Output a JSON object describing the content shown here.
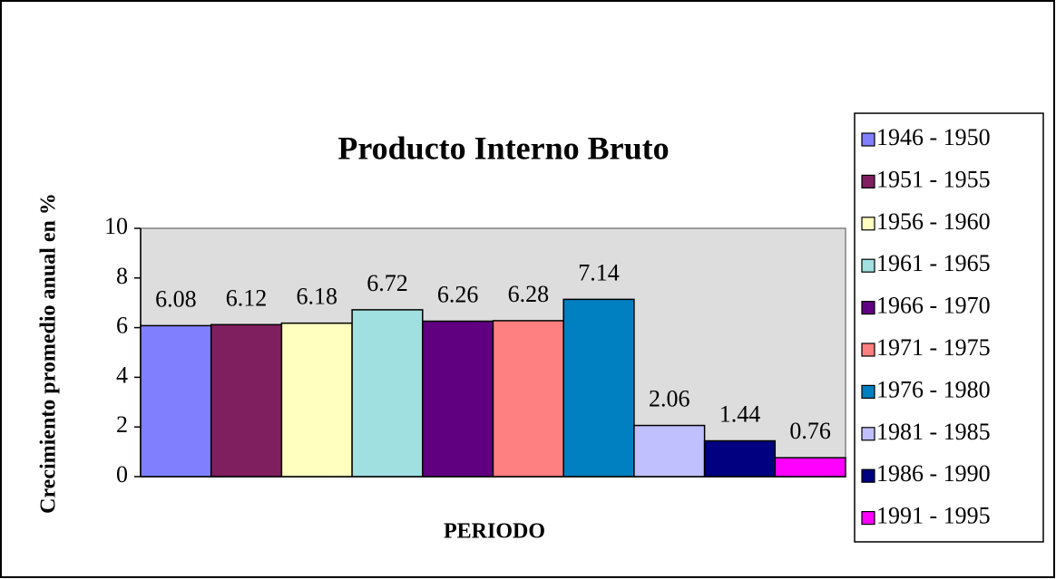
{
  "chart_data": {
    "type": "bar",
    "title": "Producto Interno Bruto",
    "ylabel": "Crecimiento promedio anual en %",
    "xlabel": "PERIODO",
    "categories": [
      "1946 - 1950",
      "1951 - 1955",
      "1956 - 1960",
      "1961 - 1965",
      "1966 - 1970",
      "1971 - 1975",
      "1976 - 1980",
      "1981 - 1985",
      "1986 - 1990",
      "1991 - 1995"
    ],
    "values": [
      6.08,
      6.12,
      6.18,
      6.72,
      6.26,
      6.28,
      7.14,
      2.06,
      1.44,
      0.76
    ],
    "colors": [
      "#8080ff",
      "#7f1f5f",
      "#ffffc0",
      "#a0e0e0",
      "#600080",
      "#ff8080",
      "#0080c0",
      "#c0c0ff",
      "#000080",
      "#ff00ff"
    ],
    "ylim": [
      0,
      10
    ],
    "yticks": [
      0,
      2,
      4,
      6,
      8,
      10
    ],
    "grid": false,
    "legend": "right"
  }
}
